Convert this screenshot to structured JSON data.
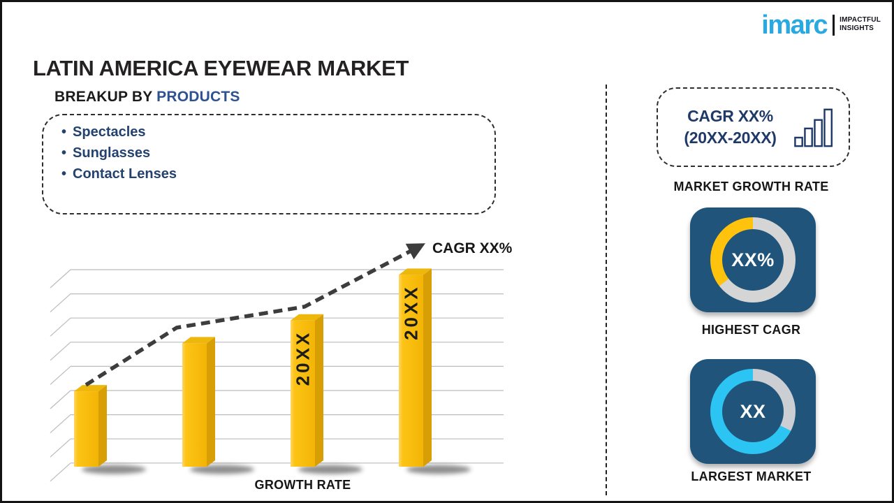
{
  "page": {
    "title": "LATIN AMERICA EYEWEAR MARKET"
  },
  "logo": {
    "brand": "imarc",
    "tagline_line1": "IMPACTFUL",
    "tagline_line2": "INSIGHTS"
  },
  "breakup": {
    "heading_prefix": "BREAKUP BY ",
    "heading_highlight": "PRODUCTS",
    "bullet_char": "•",
    "items": [
      "Spectacles",
      "Sunglasses",
      "Contact Lenses"
    ]
  },
  "chart_data": [
    {
      "type": "bar",
      "title": "",
      "xlabel": "GROWTH RATE",
      "ylabel": "",
      "categories": [
        "",
        "",
        "20XX",
        "20XX"
      ],
      "values": [
        33,
        54,
        64,
        84
      ],
      "value_units": "relative height percent (axis unlabeled placeholder chart)",
      "ylim": [
        0,
        100
      ],
      "grid": true,
      "gridline_count": 9,
      "bar_color": "#FBC10D",
      "style": "3d-yellow-bars",
      "trend": {
        "label": "CAGR XX%",
        "style": "dashed-arrow",
        "direction": "up"
      }
    },
    {
      "type": "pie",
      "subtype": "donut",
      "label": "HIGHEST CAGR",
      "center_text": "XX%",
      "slices": [
        {
          "name": "track",
          "deg": 232,
          "color": "#D5D5D5"
        },
        {
          "name": "highlighted",
          "deg": 128,
          "color": "#FFC20D"
        }
      ]
    },
    {
      "type": "pie",
      "subtype": "donut",
      "label": "LARGEST MARKET",
      "center_text": "XX",
      "slices": [
        {
          "name": "track",
          "deg": 117,
          "color": "#CBCFD3"
        },
        {
          "name": "highlighted",
          "deg": 243,
          "color": "#2BC4F3"
        }
      ]
    }
  ],
  "right_panel": {
    "cagr_box": {
      "line1": "CAGR XX%",
      "line2": "(20XX-20XX)"
    },
    "market_growth_rate_label": "MARKET GROWTH RATE"
  },
  "colors": {
    "brand_blue": "#2AA9E1",
    "navy": "#1F3A68",
    "list_navy": "#24426E",
    "heading_highlight": "#2D5191",
    "bar_yellow": "#FBC10D",
    "bar_side": "#D79F05",
    "bar_top": "#EDB70C",
    "tile_blue": "#20547A",
    "donut_yellow": "#FFC20D",
    "donut_cyan": "#2BC4F3",
    "trend_gray": "#3d3d3d"
  }
}
